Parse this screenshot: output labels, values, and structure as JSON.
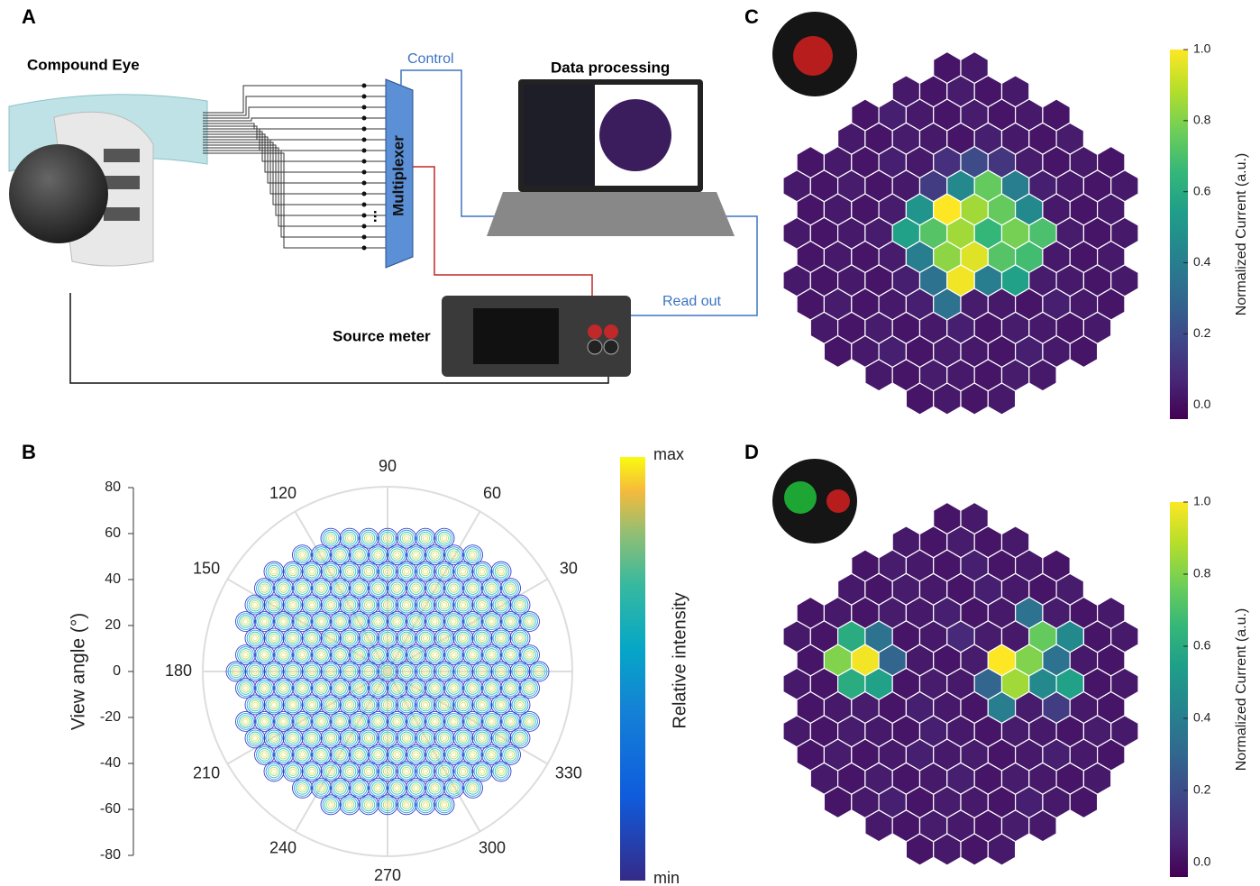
{
  "panels": {
    "a": "A",
    "b": "B",
    "c": "C",
    "d": "D"
  },
  "panel_a": {
    "compound_eye": "Compound Eye",
    "control": "Control",
    "data_processing": "Data processing",
    "multiplexer": "Multiplexer",
    "source_meter": "Source meter",
    "read_out": "Read out",
    "ellipsis": "..."
  },
  "panel_b": {
    "y_label": "View angle (°)",
    "ylim": [
      -80,
      80
    ],
    "yticks": [
      80,
      60,
      40,
      20,
      0,
      -20,
      -40,
      -60,
      -80
    ],
    "angles": [
      90,
      120,
      60,
      150,
      30,
      180,
      210,
      330,
      240,
      300,
      270
    ],
    "colorbar_label": "Relative intensity",
    "colorbar_max": "max",
    "colorbar_min": "min"
  },
  "panel_c": {
    "colorbar_label": "Normalized Current (a.u.)",
    "clim": [
      -0.04,
      1.0
    ],
    "cticks": [
      {
        "value": 0,
        "label": "0.0"
      },
      {
        "value": 0.2,
        "label": "0.2"
      },
      {
        "value": 0.4,
        "label": "0.4"
      },
      {
        "value": 0.6,
        "label": "0.6"
      },
      {
        "value": 0.8,
        "label": "0.8"
      },
      {
        "value": 1,
        "label": "1.0"
      }
    ],
    "rows": [
      [
        0.02,
        0.03
      ],
      [
        0.03,
        0.02,
        0.04,
        0.02,
        0.03
      ],
      [
        0.02,
        0.05,
        0.03,
        0.02,
        0.04,
        0.02,
        0.03,
        0.02
      ],
      [
        0.03,
        0.02,
        0.04,
        0.03,
        0.02,
        0.05,
        0.03,
        0.02,
        0.04
      ],
      [
        0.02,
        0.03,
        0.02,
        0.05,
        0.03,
        0.1,
        0.2,
        0.12,
        0.04,
        0.02,
        0.03,
        0.02
      ],
      [
        0.03,
        0.02,
        0.04,
        0.02,
        0.03,
        0.15,
        0.45,
        0.75,
        0.4,
        0.05,
        0.03,
        0.02,
        0.03
      ],
      [
        0.02,
        0.03,
        0.02,
        0.04,
        0.5,
        1.0,
        0.85,
        0.75,
        0.45,
        0.03,
        0.02,
        0.03
      ],
      [
        0.03,
        0.02,
        0.03,
        0.04,
        0.55,
        0.72,
        0.85,
        0.65,
        0.78,
        0.7,
        0.04,
        0.02,
        0.03
      ],
      [
        0.02,
        0.03,
        0.02,
        0.04,
        0.4,
        0.82,
        0.95,
        0.72,
        0.68,
        0.03,
        0.02,
        0.03
      ],
      [
        0.03,
        0.02,
        0.03,
        0.02,
        0.05,
        0.35,
        0.98,
        0.4,
        0.55,
        0.04,
        0.03,
        0.02,
        0.03
      ],
      [
        0.02,
        0.04,
        0.02,
        0.03,
        0.05,
        0.35,
        0.04,
        0.03,
        0.02,
        0.05,
        0.03,
        0.02
      ],
      [
        0.03,
        0.02,
        0.04,
        0.02,
        0.03,
        0.05,
        0.02,
        0.04,
        0.03,
        0.02,
        0.03
      ],
      [
        0.02,
        0.03,
        0.05,
        0.02,
        0.04,
        0.03,
        0.02,
        0.05,
        0.03,
        0.02
      ],
      [
        0.03,
        0.02,
        0.04,
        0.03,
        0.02,
        0.04,
        0.03
      ],
      [
        0.02,
        0.03,
        0.02,
        0.03
      ]
    ]
  },
  "panel_d": {
    "colorbar_label": "Normalized Current (a.u.)",
    "clim": [
      -0.04,
      1.0
    ],
    "cticks": [
      {
        "value": 0,
        "label": "0.0"
      },
      {
        "value": 0.2,
        "label": "0.2"
      },
      {
        "value": 0.4,
        "label": "0.4"
      },
      {
        "value": 0.6,
        "label": "0.6"
      },
      {
        "value": 0.8,
        "label": "0.8"
      },
      {
        "value": 1,
        "label": "1.0"
      }
    ],
    "rows": [
      [
        0.02,
        0.03
      ],
      [
        0.03,
        0.02,
        0.04,
        0.02,
        0.03
      ],
      [
        0.02,
        0.04,
        0.03,
        0.02,
        0.05,
        0.02,
        0.03,
        0.02
      ],
      [
        0.03,
        0.02,
        0.04,
        0.03,
        0.02,
        0.05,
        0.03,
        0.02,
        0.04
      ],
      [
        0.02,
        0.03,
        0.02,
        0.04,
        0.03,
        0.05,
        0.02,
        0.03,
        0.35,
        0.04,
        0.02,
        0.03
      ],
      [
        0.03,
        0.02,
        0.6,
        0.35,
        0.02,
        0.03,
        0.08,
        0.04,
        0.03,
        0.75,
        0.45,
        0.02,
        0.03
      ],
      [
        0.02,
        0.8,
        0.98,
        0.3,
        0.03,
        0.02,
        0.04,
        1.0,
        0.8,
        0.35,
        0.03,
        0.02
      ],
      [
        0.03,
        0.02,
        0.6,
        0.55,
        0.02,
        0.04,
        0.03,
        0.3,
        0.85,
        0.45,
        0.55,
        0.02,
        0.03
      ],
      [
        0.02,
        0.03,
        0.04,
        0.02,
        0.05,
        0.03,
        0.02,
        0.4,
        0.04,
        0.15,
        0.03,
        0.02
      ],
      [
        0.03,
        0.02,
        0.04,
        0.03,
        0.02,
        0.05,
        0.03,
        0.02,
        0.04,
        0.03,
        0.02,
        0.04,
        0.03
      ],
      [
        0.02,
        0.04,
        0.02,
        0.03,
        0.05,
        0.03,
        0.04,
        0.02,
        0.03,
        0.05,
        0.03,
        0.02
      ],
      [
        0.03,
        0.02,
        0.04,
        0.02,
        0.03,
        0.05,
        0.02,
        0.04,
        0.03,
        0.02,
        0.03
      ],
      [
        0.02,
        0.03,
        0.05,
        0.02,
        0.04,
        0.03,
        0.02,
        0.05,
        0.03,
        0.02
      ],
      [
        0.03,
        0.02,
        0.04,
        0.03,
        0.02,
        0.04,
        0.03
      ],
      [
        0.02,
        0.03,
        0.02,
        0.03
      ]
    ]
  }
}
